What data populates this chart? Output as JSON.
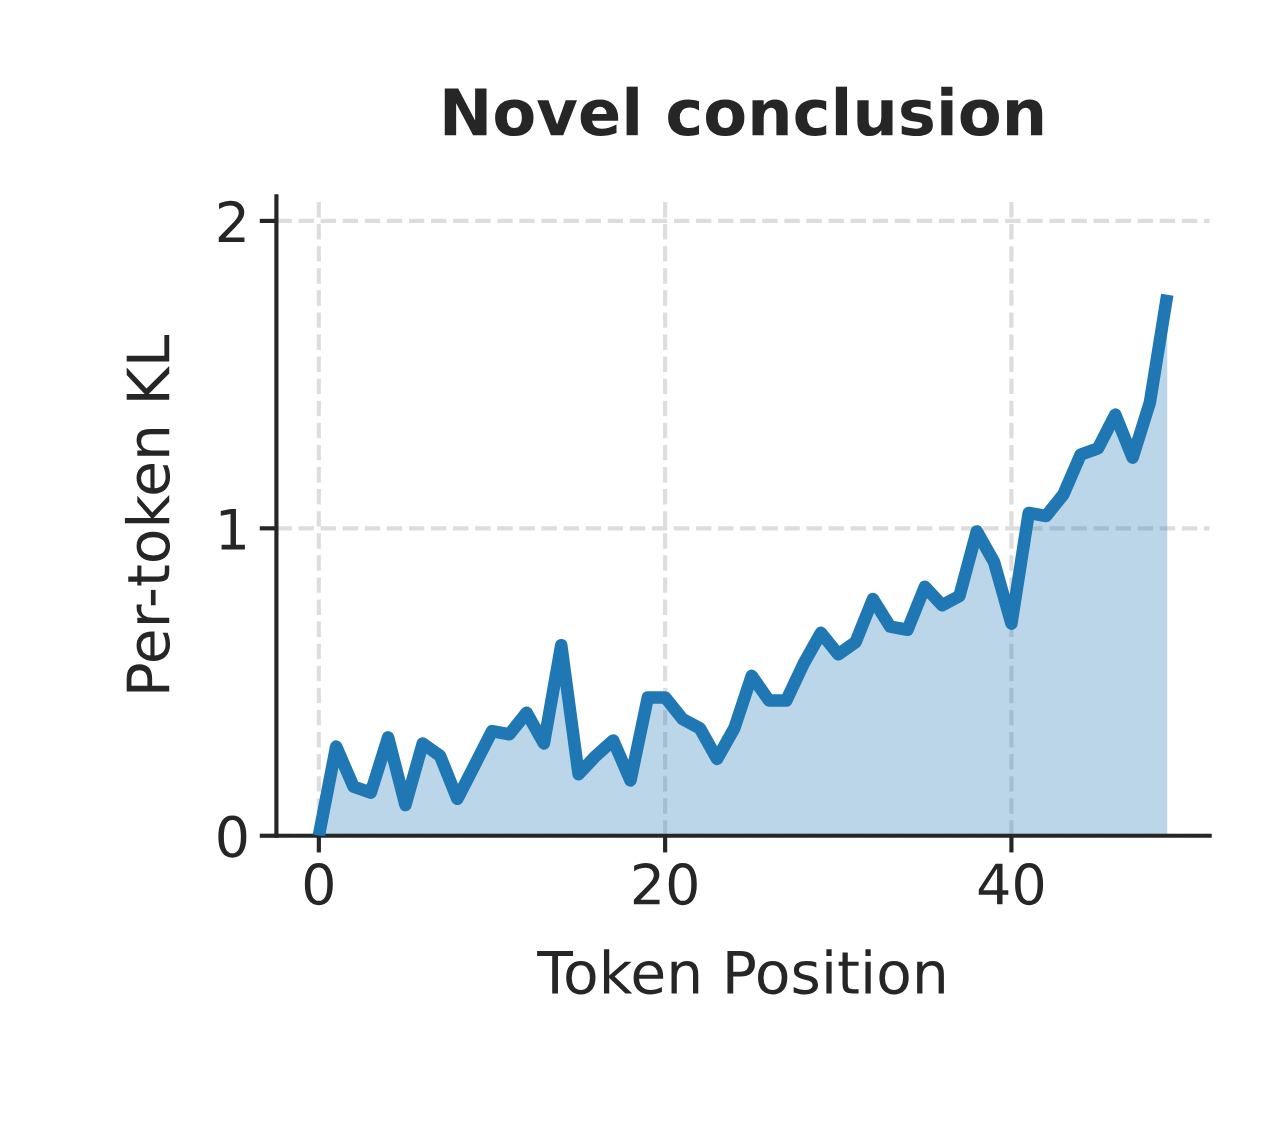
{
  "chart_data": {
    "type": "area",
    "title": "Novel conclusion",
    "xlabel": "Token Position",
    "ylabel": "Per-token KL",
    "x": [
      0,
      1,
      2,
      3,
      4,
      5,
      6,
      7,
      8,
      9,
      10,
      11,
      12,
      13,
      14,
      15,
      16,
      17,
      18,
      19,
      20,
      21,
      22,
      23,
      24,
      25,
      26,
      27,
      28,
      29,
      30,
      31,
      32,
      33,
      34,
      35,
      36,
      37,
      38,
      39,
      40,
      41,
      42,
      43,
      44,
      45,
      46,
      47,
      48,
      49
    ],
    "series": [
      {
        "color": "#1f77b4",
        "values": [
          0,
          0.29,
          0.16,
          0.14,
          0.32,
          0.1,
          0.3,
          0.26,
          0.12,
          0.23,
          0.34,
          0.33,
          0.4,
          0.3,
          0.62,
          0.2,
          0.26,
          0.31,
          0.18,
          0.45,
          0.45,
          0.38,
          0.35,
          0.25,
          0.35,
          0.52,
          0.44,
          0.44,
          0.56,
          0.66,
          0.59,
          0.63,
          0.77,
          0.68,
          0.67,
          0.81,
          0.75,
          0.78,
          0.99,
          0.89,
          0.69,
          1.05,
          1.04,
          1.11,
          1.24,
          1.26,
          1.37,
          1.23,
          1.41,
          1.76
        ]
      }
    ],
    "xlim": [
      -2.45,
      51.45
    ],
    "ylim": [
      0,
      2.08
    ],
    "xticks": [
      0,
      20,
      40
    ],
    "yticks": [
      0,
      1,
      2
    ],
    "grid": true
  }
}
